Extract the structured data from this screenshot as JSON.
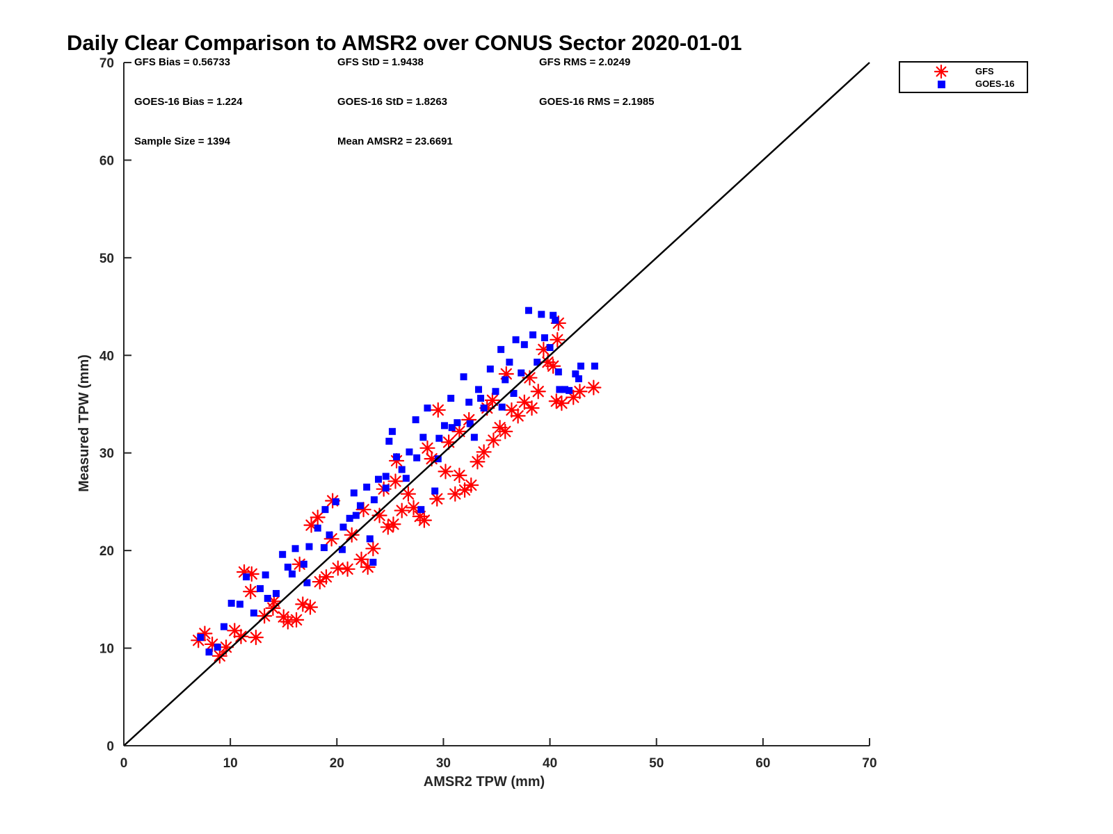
{
  "chart_data": {
    "type": "scatter",
    "title": "Daily Clear Comparison to AMSR2 over CONUS Sector 2020-01-01",
    "xlabel": "AMSR2 TPW (mm)",
    "ylabel": "Measured TPW (mm)",
    "xlim": [
      0,
      70
    ],
    "ylim": [
      0,
      70
    ],
    "xticks": [
      0,
      10,
      20,
      30,
      40,
      50,
      60,
      70
    ],
    "yticks": [
      0,
      10,
      20,
      30,
      40,
      50,
      60,
      70
    ],
    "grid": false,
    "legend_position": "outside-top-right",
    "reference_line": {
      "x": [
        0,
        70
      ],
      "y": [
        0,
        70
      ],
      "color": "#000000"
    },
    "stats": [
      [
        "GFS Bias = 0.56733",
        "GFS StD = 1.9438",
        "GFS RMS = 2.0249"
      ],
      [
        "GOES-16 Bias = 1.224",
        "GOES-16 StD = 1.8263",
        "GOES-16 RMS = 2.1985"
      ],
      [
        "Sample Size = 1394",
        "Mean AMSR2 = 23.6691",
        ""
      ]
    ],
    "series": [
      {
        "name": "GFS",
        "marker": "asterisk",
        "color": "#ff0000",
        "points": [
          [
            7,
            10.8
          ],
          [
            7.6,
            11.5
          ],
          [
            8.3,
            10.4
          ],
          [
            9,
            9.2
          ],
          [
            9.6,
            10.1
          ],
          [
            10.4,
            11.8
          ],
          [
            11,
            11.2
          ],
          [
            11.3,
            17.8
          ],
          [
            11.9,
            15.8
          ],
          [
            12.4,
            11.1
          ],
          [
            12,
            17.6
          ],
          [
            13.2,
            13.3
          ],
          [
            14.1,
            14.8
          ],
          [
            15,
            13.2
          ],
          [
            15.4,
            12.7
          ],
          [
            16.2,
            12.9
          ],
          [
            16.8,
            14.5
          ],
          [
            17.5,
            14.2
          ],
          [
            17.6,
            22.6
          ],
          [
            18.2,
            23.4
          ],
          [
            18.4,
            16.8
          ],
          [
            19,
            17.3
          ],
          [
            19.6,
            25.1
          ],
          [
            20.1,
            18.2
          ],
          [
            21,
            18.1
          ],
          [
            21.4,
            21.6
          ],
          [
            22.3,
            19.1
          ],
          [
            22.9,
            18.3
          ],
          [
            23.4,
            20.2
          ],
          [
            24,
            23.6
          ],
          [
            24.8,
            22.4
          ],
          [
            25.3,
            22.7
          ],
          [
            25.6,
            29.2
          ],
          [
            26.1,
            24.1
          ],
          [
            27.2,
            24.4
          ],
          [
            27.8,
            23.5
          ],
          [
            28.2,
            23.1
          ],
          [
            28.9,
            29.4
          ],
          [
            29.4,
            25.3
          ],
          [
            29.5,
            34.4
          ],
          [
            30.2,
            28.1
          ],
          [
            31.1,
            25.8
          ],
          [
            31.5,
            27.7
          ],
          [
            32,
            26.2
          ],
          [
            32.6,
            26.7
          ],
          [
            32.4,
            33.4
          ],
          [
            33.2,
            29.1
          ],
          [
            33.8,
            30.1
          ],
          [
            34.1,
            34.6
          ],
          [
            34.7,
            31.3
          ],
          [
            35.3,
            32.6
          ],
          [
            35.8,
            32.2
          ],
          [
            35.9,
            38.1
          ],
          [
            36.4,
            34.4
          ],
          [
            37,
            33.8
          ],
          [
            37.6,
            35.2
          ],
          [
            38.3,
            34.6
          ],
          [
            38.1,
            37.7
          ],
          [
            38.9,
            36.3
          ],
          [
            39.4,
            40.6
          ],
          [
            39.8,
            39.3
          ],
          [
            40.3,
            38.9
          ],
          [
            40.6,
            35.3
          ],
          [
            40.8,
            43.3
          ],
          [
            41.1,
            35.1
          ],
          [
            40.7,
            41.6
          ],
          [
            42.2,
            35.7
          ],
          [
            42.8,
            36.3
          ],
          [
            44.1,
            36.7
          ],
          [
            14,
            14.1
          ],
          [
            16.5,
            18.6
          ],
          [
            19.5,
            21.2
          ],
          [
            22.5,
            24.2
          ],
          [
            25.5,
            27.1
          ],
          [
            28.5,
            30.5
          ],
          [
            31.5,
            32.2
          ],
          [
            34.6,
            35.4
          ],
          [
            26.7,
            25.8
          ],
          [
            24.4,
            26.3
          ],
          [
            30.5,
            31.1
          ]
        ]
      },
      {
        "name": "GOES-16",
        "marker": "square",
        "color": "#0000ff",
        "points": [
          [
            7.2,
            11.1
          ],
          [
            8,
            9.6
          ],
          [
            8.8,
            10.1
          ],
          [
            9.4,
            12.2
          ],
          [
            10.1,
            14.6
          ],
          [
            10.9,
            14.5
          ],
          [
            11.5,
            17.3
          ],
          [
            12.2,
            13.6
          ],
          [
            12.8,
            16.1
          ],
          [
            13.3,
            17.5
          ],
          [
            14.3,
            15.6
          ],
          [
            14.9,
            19.6
          ],
          [
            15.4,
            18.3
          ],
          [
            16.1,
            20.2
          ],
          [
            16.9,
            18.6
          ],
          [
            17.4,
            20.4
          ],
          [
            18.2,
            22.3
          ],
          [
            18.9,
            24.2
          ],
          [
            19.3,
            21.6
          ],
          [
            19.9,
            25
          ],
          [
            20.6,
            22.4
          ],
          [
            21.2,
            23.3
          ],
          [
            21.6,
            25.9
          ],
          [
            22.2,
            24.6
          ],
          [
            22.8,
            26.5
          ],
          [
            23.1,
            21.2
          ],
          [
            23.4,
            18.8
          ],
          [
            23.9,
            27.3
          ],
          [
            24.6,
            27.6
          ],
          [
            24.9,
            31.2
          ],
          [
            25.6,
            29.6
          ],
          [
            25.2,
            32.2
          ],
          [
            26.1,
            28.3
          ],
          [
            26.8,
            30.1
          ],
          [
            27.4,
            33.4
          ],
          [
            27.9,
            24.2
          ],
          [
            28.1,
            31.6
          ],
          [
            28.5,
            34.6
          ],
          [
            29.2,
            26.1
          ],
          [
            29.6,
            31.5
          ],
          [
            30.1,
            32.8
          ],
          [
            30.7,
            35.6
          ],
          [
            31.3,
            33.1
          ],
          [
            31.9,
            37.8
          ],
          [
            32.4,
            35.2
          ],
          [
            32.9,
            31.6
          ],
          [
            33.3,
            36.5
          ],
          [
            33.8,
            34.6
          ],
          [
            34.4,
            38.6
          ],
          [
            34.9,
            36.3
          ],
          [
            35.4,
            40.6
          ],
          [
            35.8,
            37.5
          ],
          [
            36.2,
            39.3
          ],
          [
            36.8,
            41.6
          ],
          [
            37.3,
            38.2
          ],
          [
            37.6,
            41.1
          ],
          [
            38,
            44.6
          ],
          [
            38.4,
            42.1
          ],
          [
            38.8,
            39.3
          ],
          [
            39.2,
            44.2
          ],
          [
            39.5,
            41.8
          ],
          [
            40,
            40.8
          ],
          [
            40.3,
            44.1
          ],
          [
            40.5,
            43.6
          ],
          [
            40.8,
            38.3
          ],
          [
            40.9,
            36.5
          ],
          [
            41.4,
            36.5
          ],
          [
            41.8,
            36.4
          ],
          [
            42.4,
            38.1
          ],
          [
            42.7,
            37.6
          ],
          [
            42.9,
            38.9
          ],
          [
            44.2,
            38.9
          ],
          [
            13.5,
            15.1
          ],
          [
            15.8,
            17.6
          ],
          [
            18.8,
            20.3
          ],
          [
            21.8,
            23.6
          ],
          [
            24.6,
            26.4
          ],
          [
            27.5,
            29.5
          ],
          [
            30.8,
            32.6
          ],
          [
            33.5,
            35.6
          ],
          [
            36.6,
            36.1
          ],
          [
            17.2,
            16.7
          ],
          [
            20.5,
            20.1
          ],
          [
            23.5,
            25.2
          ],
          [
            26.5,
            27.4
          ],
          [
            29.5,
            29.4
          ],
          [
            32.5,
            33
          ],
          [
            35.5,
            34.7
          ]
        ]
      }
    ]
  }
}
